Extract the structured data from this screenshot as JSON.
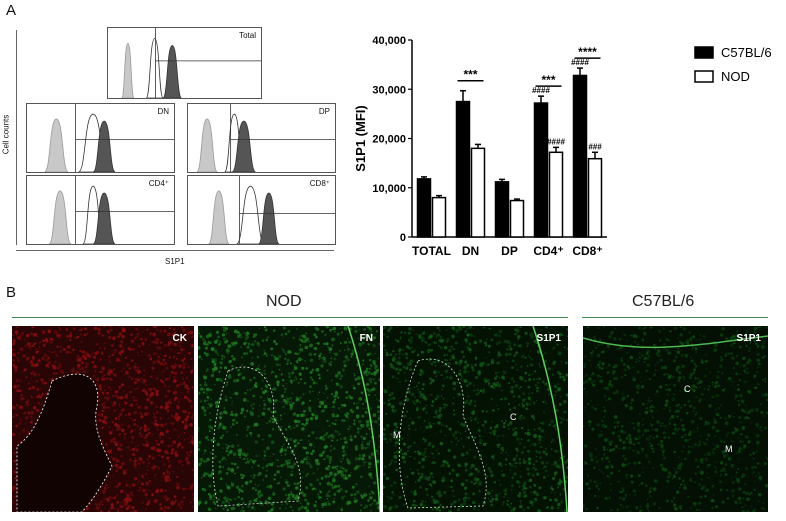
{
  "panel_a_label": "A",
  "panel_b_label": "B",
  "flow": {
    "y_axis_label": "Cell counts",
    "x_axis_label": "S1P1",
    "plots": [
      {
        "id": "total",
        "label": "Total"
      },
      {
        "id": "dn",
        "label": "DN"
      },
      {
        "id": "dp",
        "label": "DP"
      },
      {
        "id": "cd4",
        "label": "CD4⁺"
      },
      {
        "id": "cd8",
        "label": "CD8⁺"
      }
    ]
  },
  "chart_data": {
    "type": "bar",
    "title": "",
    "xlabel": "",
    "ylabel": "S1P1 (MFI)",
    "categories": [
      "TOTAL",
      "DN",
      "DP",
      "CD4⁺",
      "CD8⁺"
    ],
    "ylim": [
      0,
      40000
    ],
    "yticks": [
      "0",
      "10,000",
      "20,000",
      "30,000",
      "40,000"
    ],
    "ytick_values": [
      0,
      10000,
      20000,
      30000,
      40000
    ],
    "series": [
      {
        "name": "C57BL/6",
        "fill": "#000000",
        "values": [
          11800,
          27500,
          11200,
          27200,
          32800
        ],
        "errors": [
          400,
          2200,
          500,
          1400,
          1500
        ]
      },
      {
        "name": "NOD",
        "fill": "#ffffff",
        "values": [
          8000,
          18000,
          7400,
          17200,
          15900
        ],
        "errors": [
          400,
          800,
          300,
          1000,
          1300
        ]
      }
    ],
    "significance": [
      {
        "category": "DN",
        "label": "***"
      },
      {
        "category": "CD4⁺",
        "label": "***"
      },
      {
        "category": "CD8⁺",
        "label": "****"
      }
    ],
    "hash_marks": [
      {
        "category": "CD4⁺",
        "series": "C57BL/6",
        "label": "####"
      },
      {
        "category": "CD4⁺",
        "series": "NOD",
        "label": "####"
      },
      {
        "category": "CD8⁺",
        "series": "C57BL/6",
        "label": "####"
      },
      {
        "category": "CD8⁺",
        "series": "NOD",
        "label": "###"
      }
    ],
    "legend_position": "right",
    "grid": false
  },
  "panel_b": {
    "group_nod": "NOD",
    "group_c57": "C57BL/6",
    "images": [
      {
        "id": "ck",
        "label": "CK",
        "color": "#8a0f12"
      },
      {
        "id": "fn",
        "label": "FN",
        "color": "#1f7a22"
      },
      {
        "id": "s1p1-nod",
        "label": "S1P1",
        "color": "#145e1a",
        "region_m": "M",
        "region_c": "C"
      },
      {
        "id": "s1p1-c57",
        "label": "S1P1",
        "color": "#0d4a12",
        "region_m": "M",
        "region_c": "C"
      }
    ]
  }
}
